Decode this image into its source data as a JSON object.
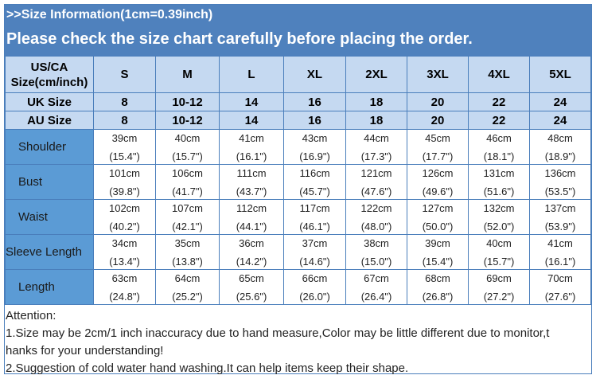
{
  "banner": {
    "title": ">>Size Information(1cm=0.39inch)",
    "subtitle": "Please check the size chart carefully before placing the order."
  },
  "table": {
    "header_label": [
      "US/CA",
      "Size(cm/inch)"
    ],
    "sizes": [
      "S",
      "M",
      "L",
      "XL",
      "2XL",
      "3XL",
      "4XL",
      "5XL"
    ],
    "uk": {
      "label": "UK Size",
      "values": [
        "8",
        "10-12",
        "14",
        "16",
        "18",
        "20",
        "22",
        "24"
      ]
    },
    "au": {
      "label": "AU Size",
      "values": [
        "8",
        "10-12",
        "14",
        "16",
        "18",
        "20",
        "22",
        "24"
      ]
    },
    "rows": [
      {
        "label": "Shoulder",
        "cm": [
          "39cm",
          "40cm",
          "41cm",
          "43cm",
          "44cm",
          "45cm",
          "46cm",
          "48cm"
        ],
        "inch": [
          "(15.4\")",
          "(15.7\")",
          "(16.1\")",
          "(16.9\")",
          "(17.3\")",
          "(17.7\")",
          "(18.1\")",
          "(18.9\")"
        ]
      },
      {
        "label": "Bust",
        "cm": [
          "101cm",
          "106cm",
          "111cm",
          "116cm",
          "121cm",
          "126cm",
          "131cm",
          "136cm"
        ],
        "inch": [
          "(39.8\")",
          "(41.7\")",
          "(43.7\")",
          "(45.7\")",
          "(47.6\")",
          "(49.6\")",
          "(51.6\")",
          "(53.5\")"
        ]
      },
      {
        "label": "Waist",
        "cm": [
          "102cm",
          "107cm",
          "112cm",
          "117cm",
          "122cm",
          "127cm",
          "132cm",
          "137cm"
        ],
        "inch": [
          "(40.2\")",
          "(42.1\")",
          "(44.1\")",
          "(46.1\")",
          "(48.0\")",
          "(50.0\")",
          "(52.0\")",
          "(53.9\")"
        ]
      },
      {
        "label": "Sleeve Length",
        "cm": [
          "34cm",
          "35cm",
          "36cm",
          "37cm",
          "38cm",
          "39cm",
          "40cm",
          "41cm"
        ],
        "inch": [
          "(13.4\")",
          "(13.8\")",
          "(14.2\")",
          "(14.6\")",
          "(15.0\")",
          "(15.4\")",
          "(15.7\")",
          "(16.1\")"
        ]
      },
      {
        "label": "Length",
        "cm": [
          "63cm",
          "64cm",
          "65cm",
          "66cm",
          "67cm",
          "68cm",
          "69cm",
          "70cm"
        ],
        "inch": [
          "(24.8\")",
          "(25.2\")",
          "(25.6\")",
          "(26.0\")",
          "(26.4\")",
          "(26.8\")",
          "(27.2\")",
          "(27.6\")"
        ]
      }
    ]
  },
  "notes": [
    "Attention:",
    "1.Size may be 2cm/1 inch inaccuracy due to hand measure,Color may be little different due to monitor,t",
    "hanks for your understanding!",
    "2.Suggestion of cold water hand washing.It can help items keep their shape."
  ],
  "colors": {
    "banner": "#4f81bd",
    "header_cell": "#c5d9f1",
    "row_label": "#5b9bd5",
    "border": "#4a7ebb"
  }
}
